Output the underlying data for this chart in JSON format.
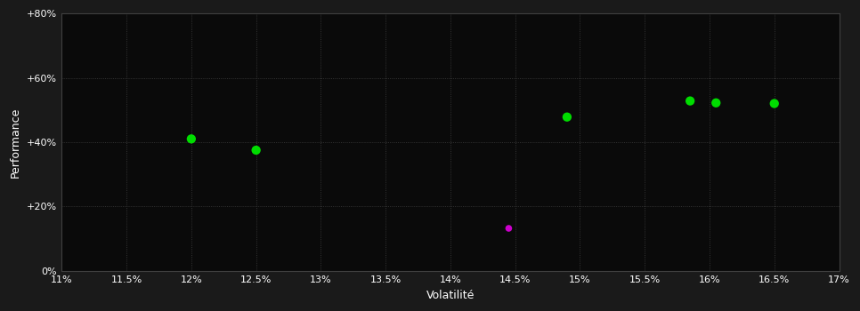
{
  "background_color": "#1a1a1a",
  "plot_bg_color": "#0a0a0a",
  "grid_color": "#404040",
  "text_color": "#ffffff",
  "xlabel": "Volatilité",
  "ylabel": "Performance",
  "xlim": [
    0.11,
    0.17
  ],
  "ylim": [
    0.0,
    0.8
  ],
  "xticks": [
    0.11,
    0.115,
    0.12,
    0.125,
    0.13,
    0.135,
    0.14,
    0.145,
    0.15,
    0.155,
    0.16,
    0.165,
    0.17
  ],
  "yticks": [
    0.0,
    0.2,
    0.4,
    0.6,
    0.8
  ],
  "ytick_labels": [
    "0%",
    "+20%",
    "+40%",
    "+60%",
    "+80%"
  ],
  "xtick_labels": [
    "11%",
    "11.5%",
    "12%",
    "12.5%",
    "13%",
    "13.5%",
    "14%",
    "14.5%",
    "15%",
    "15.5%",
    "16%",
    "16.5%",
    "17%"
  ],
  "green_points": [
    [
      0.12,
      0.41
    ],
    [
      0.125,
      0.375
    ],
    [
      0.149,
      0.478
    ],
    [
      0.1585,
      0.528
    ],
    [
      0.1605,
      0.522
    ],
    [
      0.165,
      0.52
    ]
  ],
  "magenta_points": [
    [
      0.1445,
      0.132
    ]
  ],
  "green_color": "#00dd00",
  "magenta_color": "#cc00cc",
  "marker_size": 55,
  "magenta_marker_size": 30
}
